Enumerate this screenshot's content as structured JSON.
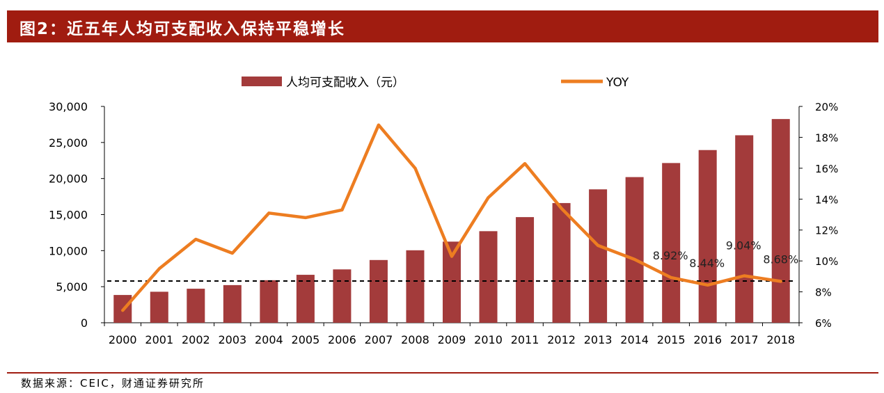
{
  "title": "图2：近五年人均可支配收入保持平稳增长",
  "source": "数据来源：CEIC，财通证券研究所",
  "colors": {
    "bar": "#a33b3b",
    "line": "#ed7d21",
    "title_bg": "#a01c10"
  },
  "chart_data": {
    "type": "bar",
    "categories": [
      "2000",
      "2001",
      "2002",
      "2003",
      "2004",
      "2005",
      "2006",
      "2007",
      "2008",
      "2009",
      "2010",
      "2011",
      "2012",
      "2013",
      "2014",
      "2015",
      "2016",
      "2017",
      "2018"
    ],
    "series": [
      {
        "name": "人均可支配收入（元）",
        "type": "bar",
        "axis": "left",
        "values": [
          3850,
          4300,
          4720,
          5220,
          5900,
          6650,
          7400,
          8700,
          10050,
          11250,
          12700,
          14650,
          16600,
          18500,
          20200,
          22150,
          23950,
          26000,
          28250
        ]
      },
      {
        "name": "YOY",
        "type": "line",
        "axis": "right",
        "values": [
          6.8,
          9.5,
          11.4,
          10.5,
          13.1,
          12.8,
          13.3,
          18.8,
          16.0,
          10.3,
          14.1,
          16.3,
          13.4,
          11.0,
          10.1,
          8.92,
          8.44,
          9.04,
          8.68
        ]
      }
    ],
    "data_labels": [
      {
        "index": 15,
        "text": "8.92%"
      },
      {
        "index": 16,
        "text": "8.44%"
      },
      {
        "index": 17,
        "text": "9.04%"
      },
      {
        "index": 18,
        "text": "8.68%"
      }
    ],
    "reference_line": {
      "axis": "right",
      "value": 8.7,
      "style": "dashed"
    },
    "y_left": {
      "lim": [
        0,
        30000
      ],
      "ticks": [
        0,
        5000,
        10000,
        15000,
        20000,
        25000,
        30000
      ],
      "tick_labels": [
        "0",
        "5,000",
        "10,000",
        "15,000",
        "20,000",
        "25,000",
        "30,000"
      ]
    },
    "y_right": {
      "lim": [
        6,
        20
      ],
      "ticks": [
        6,
        8,
        10,
        12,
        14,
        16,
        18,
        20
      ],
      "tick_labels": [
        "6%",
        "8%",
        "10%",
        "12%",
        "14%",
        "16%",
        "18%",
        "20%"
      ]
    },
    "legend_position": "top-center",
    "grid": false
  }
}
